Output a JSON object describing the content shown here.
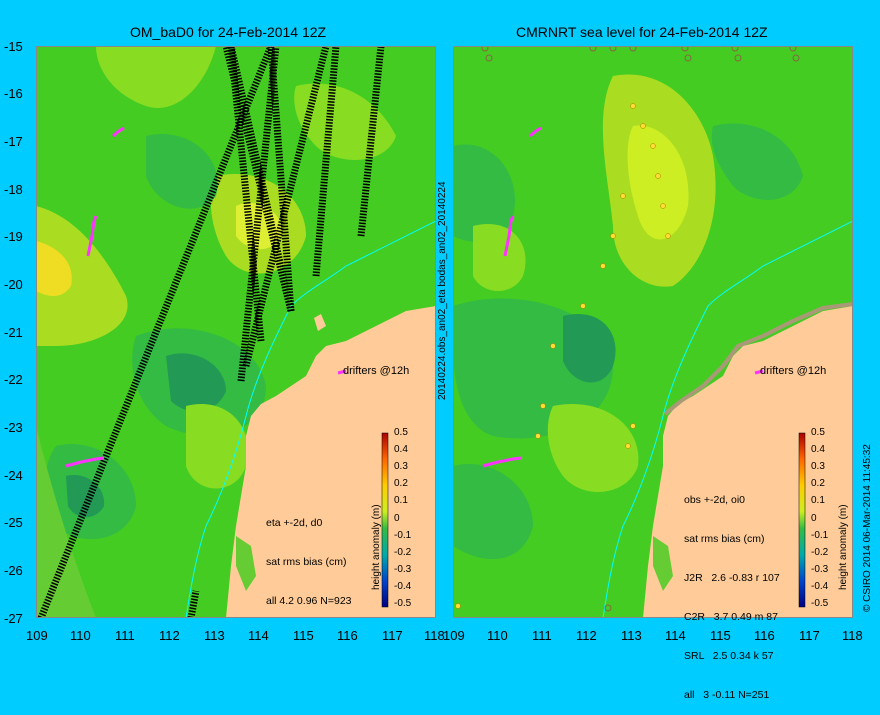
{
  "left_panel": {
    "title": "OM_baD0 for 24-Feb-2014 12Z",
    "x_ticks": [
      "109",
      "110",
      "111",
      "112",
      "113",
      "114",
      "115",
      "116",
      "117",
      "118"
    ],
    "y_ticks": [
      "-15",
      "-16",
      "-17",
      "-18",
      "-19",
      "-20",
      "-21",
      "-22",
      "-23",
      "-24",
      "-25",
      "-26",
      "-27"
    ],
    "annotation": [
      "eta +-2d, d0",
      "sat rms bias (cm)",
      "all 4.2 0.96 N=923"
    ],
    "drifter_label": "drifters @12h",
    "colorbar_ticks": [
      "0.5",
      "0.4",
      "0.3",
      "0.2",
      "0.1",
      "0",
      "-0.1",
      "-0.2",
      "-0.3",
      "-0.4",
      "-0.5"
    ],
    "colorbar_label": "height anomaly (m)"
  },
  "right_panel": {
    "title": "CMRNRT sea level  for 24-Feb-2014 12Z",
    "x_ticks": [
      "109",
      "110",
      "111",
      "112",
      "113",
      "114",
      "115",
      "116",
      "117",
      "118"
    ],
    "annotation": [
      "obs +-2d, oi0",
      "sat rms bias (cm)",
      "J2R   2.6 -0.83 r 107",
      "C2R   3.7 0.49 m 87",
      "SRL   2.5 0.34 k 57",
      "all   3 -0.11 N=251"
    ],
    "drifter_label": "drifters @12h",
    "colorbar_ticks": [
      "0.5",
      "0.4",
      "0.3",
      "0.2",
      "0.1",
      "0",
      "-0.1",
      "-0.2",
      "-0.3",
      "-0.4",
      "-0.5"
    ],
    "colorbar_label": "height anomaly (m)"
  },
  "middle_vertical_label": "20140224.obs_an02_eta     bodas_an02_20140224",
  "right_vertical_label": "© CSIRO 2014   06-Mar-2014 11:45:32",
  "colors": {
    "background": "#00ccff",
    "ocean_base": "#44cc22",
    "ocean_high": "#ccee22",
    "ocean_low": "#229944",
    "land": "#ffcc99",
    "drifter": "#ff33ff",
    "coast_contour": "#00ffff"
  }
}
